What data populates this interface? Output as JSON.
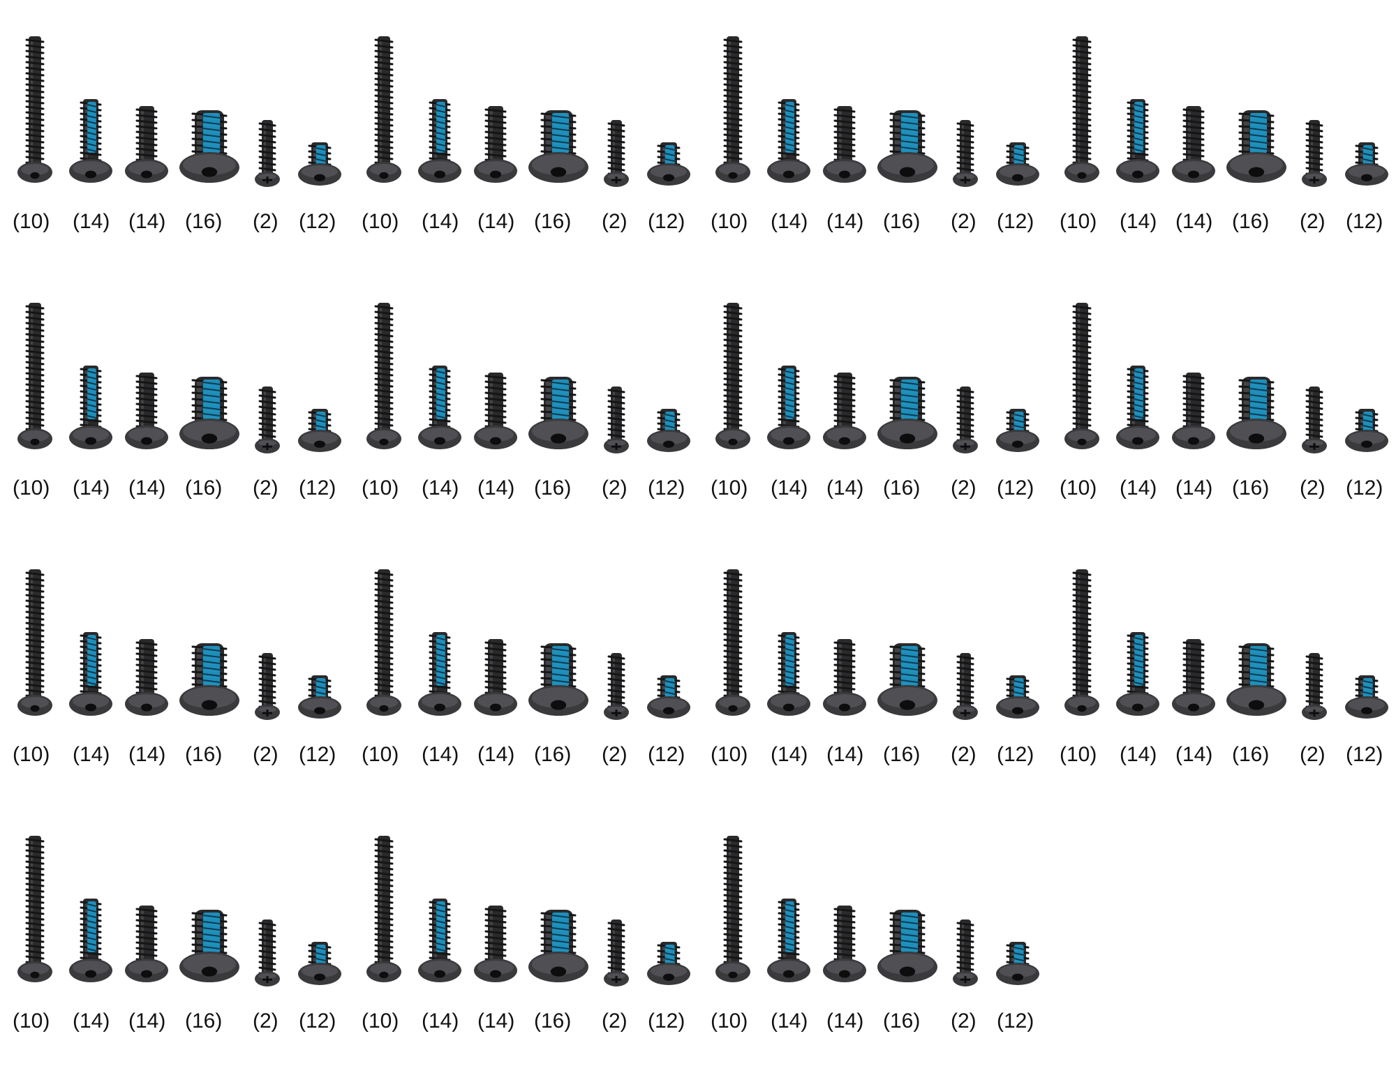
{
  "background_color": "#ffffff",
  "screw_color": "#2a2a2c",
  "threadlock_color": "#1fa3d6",
  "panel_count": 15,
  "screw_set": [
    {
      "label": "(10)",
      "kind": "long-self-tapping",
      "threadlock": false
    },
    {
      "label": "(14)",
      "kind": "button-head-machine",
      "threadlock": true
    },
    {
      "label": "(14)",
      "kind": "button-head-self-tapping",
      "threadlock": false
    },
    {
      "label": "(16)",
      "kind": "large-button-head-machine",
      "threadlock": true
    },
    {
      "label": "(2)",
      "kind": "small-phillips-self-tapping",
      "threadlock": false
    },
    {
      "label": "(12)",
      "kind": "short-button-head-machine",
      "threadlock": true
    }
  ]
}
